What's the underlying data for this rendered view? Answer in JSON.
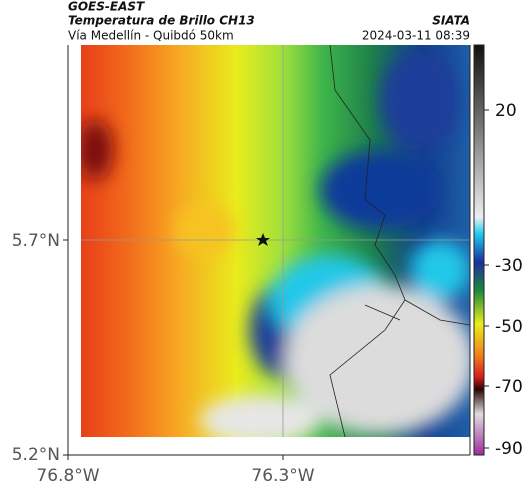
{
  "header": {
    "satellite": "GOES-EAST",
    "title": "Temperatura de Brillo CH13",
    "subtitle": "Vía Medellín - Quibdó 50km",
    "brand": "SIATA",
    "timestamp": "2024-03-11 08:39"
  },
  "map": {
    "x_tick_labels": [
      "76.8°W",
      "76.3°W"
    ],
    "y_tick_labels": [
      "5.7°N",
      "5.2°N"
    ]
  },
  "colorbar": {
    "tick_labels": [
      "20",
      "-30",
      "-50",
      "-70",
      "-90"
    ]
  }
}
